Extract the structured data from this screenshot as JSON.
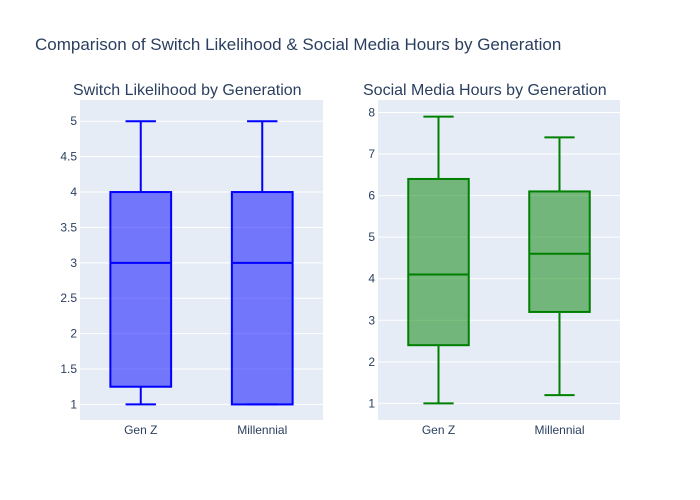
{
  "title": "Comparison of Switch Likelihood & Social Media Hours by Generation",
  "colors": {
    "plot_bg": "#e5ecf6",
    "grid": "#ffffff",
    "text": "#2a3f5f"
  },
  "chart_data": [
    {
      "type": "box",
      "title": "Switch Likelihood by Generation",
      "categories": [
        "Gen Z",
        "Millennial"
      ],
      "ylim": [
        0.78,
        5.3
      ],
      "yticks": [
        1,
        1.5,
        2,
        2.5,
        3,
        3.5,
        4,
        4.5,
        5
      ],
      "ytick_labels": [
        "1",
        "1.5",
        "2",
        "2.5",
        "3",
        "3.5",
        "4",
        "4.5",
        "5"
      ],
      "grid": true,
      "line_color": "#0000ff",
      "fill_color": "rgba(0,0,255,0.5)",
      "boxes": [
        {
          "category": "Gen Z",
          "min": 1,
          "q1": 1.25,
          "median": 3,
          "q3": 4,
          "max": 5
        },
        {
          "category": "Millennial",
          "min": 1,
          "q1": 1,
          "median": 3,
          "q3": 4,
          "max": 5
        }
      ]
    },
    {
      "type": "box",
      "title": "Social Media Hours by Generation",
      "categories": [
        "Gen Z",
        "Millennial"
      ],
      "ylim": [
        0.6,
        8.3
      ],
      "yticks": [
        1,
        2,
        3,
        4,
        5,
        6,
        7,
        8
      ],
      "ytick_labels": [
        "1",
        "2",
        "3",
        "4",
        "5",
        "6",
        "7",
        "8"
      ],
      "grid": true,
      "line_color": "#008000",
      "fill_color": "rgba(0,128,0,0.5)",
      "boxes": [
        {
          "category": "Gen Z",
          "min": 1,
          "q1": 2.4,
          "median": 4.1,
          "q3": 6.4,
          "max": 7.9
        },
        {
          "category": "Millennial",
          "min": 1.2,
          "q1": 3.2,
          "median": 4.6,
          "q3": 6.1,
          "max": 7.4
        }
      ]
    }
  ]
}
